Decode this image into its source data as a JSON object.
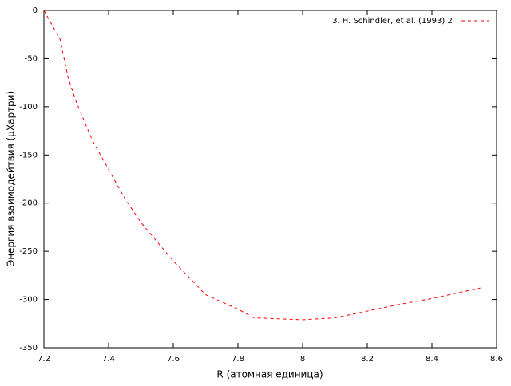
{
  "chart_data": {
    "type": "line",
    "xlabel": "R (атомная единица)",
    "ylabel": "Энергия взаимодейтвия (μХартри)",
    "x": [
      7.2,
      7.25,
      7.275,
      7.3,
      7.35,
      7.4,
      7.45,
      7.5,
      7.6,
      7.7,
      7.8,
      7.85,
      8.0,
      8.1,
      8.2,
      8.3,
      8.4,
      8.55
    ],
    "series": [
      {
        "name": "З. H. Schindler, et al. (1993) 2.",
        "color": "#ff0000",
        "values": [
          0,
          -30,
          -70,
          -95,
          -135,
          -165,
          -195,
          -220,
          -260,
          -295,
          -310,
          -319,
          -321,
          -319,
          -312,
          -305,
          -299,
          -288
        ]
      }
    ],
    "xlim": [
      7.2,
      8.6
    ],
    "xticks": [
      7.2,
      7.4,
      7.6,
      7.8,
      8,
      8.2,
      8.4,
      8.6
    ],
    "ylim": [
      -350,
      0
    ],
    "yticks": [
      0,
      -50,
      -100,
      -150,
      -200,
      -250,
      -300,
      -350
    ],
    "legend": "upper right"
  }
}
